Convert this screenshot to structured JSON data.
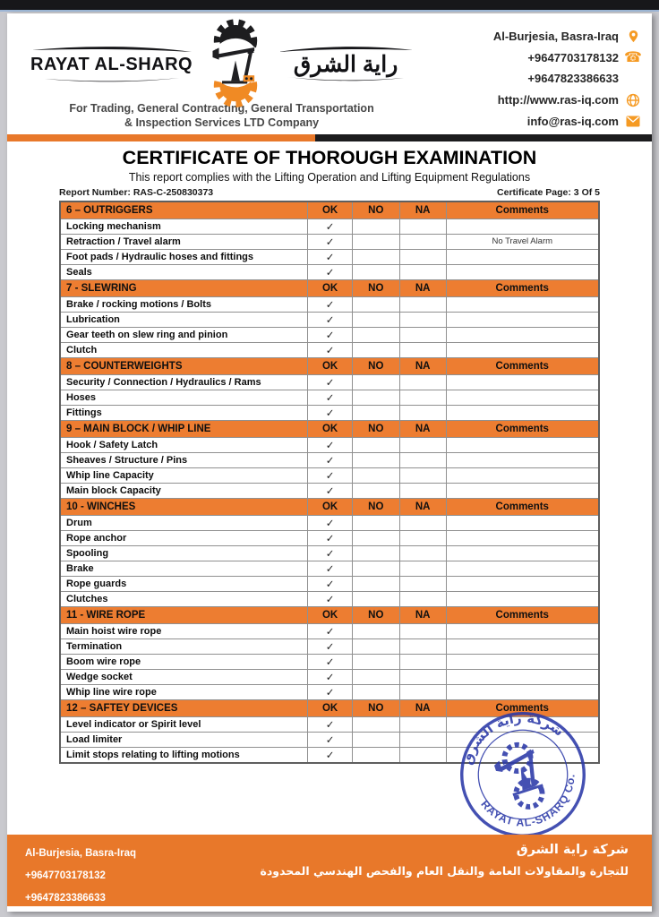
{
  "colors": {
    "accent_orange": "#ED7D31",
    "divider_orange": "#E8782A",
    "bar_black": "#1c1c1e",
    "stamp_blue": "#2b39a8",
    "icon_orange": "#F59A23"
  },
  "header": {
    "company_name": "RAYAT AL-SHARQ",
    "company_name_arabic": "راية الشرق",
    "tagline_line1": "For Trading, General Contracting, General Transportation",
    "tagline_line2": "& Inspection Services LTD Company",
    "contacts": [
      {
        "text": "Al-Burjesia, Basra-Iraq",
        "icon": "location-pin-icon"
      },
      {
        "text": "+9647703178132",
        "icon": "phone-icon"
      },
      {
        "text": "+9647823386633",
        "icon": "none"
      },
      {
        "text": "http://www.ras-iq.com",
        "icon": "globe-icon"
      },
      {
        "text": "info@ras-iq.com",
        "icon": "email-icon"
      }
    ]
  },
  "page": {
    "title": "CERTIFICATE OF THOROUGH EXAMINATION",
    "subtitle": "This report complies with the Lifting Operation and Lifting Equipment Regulations",
    "report_number": "Report Number: RAS-C-250830373",
    "certificate_page": "Certificate Page: 3 Of 5"
  },
  "table": {
    "columns": [
      "OK",
      "NO",
      "NA",
      "Comments"
    ],
    "check_glyph": "✓",
    "sections": [
      {
        "title": "6 – OUTRIGGERS",
        "rows": [
          {
            "item": "Locking mechanism",
            "ok": true,
            "no": false,
            "na": false,
            "comment": ""
          },
          {
            "item": "Retraction / Travel alarm",
            "ok": true,
            "no": false,
            "na": false,
            "comment": "No Travel Alarm"
          },
          {
            "item": "Foot pads / Hydraulic hoses and fittings",
            "ok": true,
            "no": false,
            "na": false,
            "comment": ""
          },
          {
            "item": "Seals",
            "ok": true,
            "no": false,
            "na": false,
            "comment": ""
          }
        ]
      },
      {
        "title": "7 - SLEWRING",
        "rows": [
          {
            "item": "Brake / rocking motions / Bolts",
            "ok": true,
            "no": false,
            "na": false,
            "comment": ""
          },
          {
            "item": "Lubrication",
            "ok": true,
            "no": false,
            "na": false,
            "comment": ""
          },
          {
            "item": "Gear teeth on slew ring and pinion",
            "ok": true,
            "no": false,
            "na": false,
            "comment": ""
          },
          {
            "item": "Clutch",
            "ok": true,
            "no": false,
            "na": false,
            "comment": ""
          }
        ]
      },
      {
        "title": "8 – COUNTERWEIGHTS",
        "rows": [
          {
            "item": "Security / Connection / Hydraulics / Rams",
            "ok": true,
            "no": false,
            "na": false,
            "comment": ""
          },
          {
            "item": "Hoses",
            "ok": true,
            "no": false,
            "na": false,
            "comment": ""
          },
          {
            "item": "Fittings",
            "ok": true,
            "no": false,
            "na": false,
            "comment": ""
          }
        ]
      },
      {
        "title": "9 – MAIN BLOCK / WHIP LINE",
        "rows": [
          {
            "item": "Hook / Safety Latch",
            "ok": true,
            "no": false,
            "na": false,
            "comment": ""
          },
          {
            "item": "Sheaves / Structure / Pins",
            "ok": true,
            "no": false,
            "na": false,
            "comment": ""
          },
          {
            "item": "Whip line Capacity",
            "ok": true,
            "no": false,
            "na": false,
            "comment": ""
          },
          {
            "item": "Main block Capacity",
            "ok": true,
            "no": false,
            "na": false,
            "comment": ""
          }
        ]
      },
      {
        "title": "10 - WINCHES",
        "rows": [
          {
            "item": "Drum",
            "ok": true,
            "no": false,
            "na": false,
            "comment": ""
          },
          {
            "item": "Rope anchor",
            "ok": true,
            "no": false,
            "na": false,
            "comment": ""
          },
          {
            "item": "Spooling",
            "ok": true,
            "no": false,
            "na": false,
            "comment": ""
          },
          {
            "item": "Brake",
            "ok": true,
            "no": false,
            "na": false,
            "comment": ""
          },
          {
            "item": "Rope guards",
            "ok": true,
            "no": false,
            "na": false,
            "comment": ""
          },
          {
            "item": "Clutches",
            "ok": true,
            "no": false,
            "na": false,
            "comment": ""
          }
        ]
      },
      {
        "title": "11 - WIRE ROPE",
        "rows": [
          {
            "item": "Main hoist wire rope",
            "ok": true,
            "no": false,
            "na": false,
            "comment": ""
          },
          {
            "item": "Termination",
            "ok": true,
            "no": false,
            "na": false,
            "comment": ""
          },
          {
            "item": "Boom wire rope",
            "ok": true,
            "no": false,
            "na": false,
            "comment": ""
          },
          {
            "item": "Wedge socket",
            "ok": true,
            "no": false,
            "na": false,
            "comment": ""
          },
          {
            "item": "Whip line wire rope",
            "ok": true,
            "no": false,
            "na": false,
            "comment": ""
          }
        ]
      },
      {
        "title": "12 – SAFTEY DEVICES",
        "rows": [
          {
            "item": "Level indicator or Spirit level",
            "ok": true,
            "no": false,
            "na": false,
            "comment": ""
          },
          {
            "item": "Load limiter",
            "ok": true,
            "no": false,
            "na": false,
            "comment": ""
          },
          {
            "item": "Limit stops relating to lifting motions",
            "ok": true,
            "no": false,
            "na": false,
            "comment": ""
          }
        ]
      }
    ]
  },
  "stamp": {
    "arabic_text": "شركة راية الشرق",
    "latin_text": "RAYAT AL-SHARQ Co.",
    "color": "#2b39a8"
  },
  "footer": {
    "left_lines": [
      "Al-Burjesia, Basra-Iraq",
      "+9647703178132",
      "+9647823386633"
    ],
    "right_lines": [
      "شركة راية الشرق",
      "للتجارة والمقاولات العامة والنقل العام والفحص الهندسي المحدودة"
    ]
  }
}
